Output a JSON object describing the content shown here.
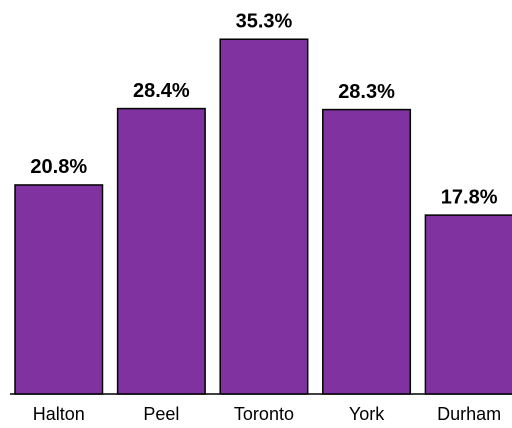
{
  "chart_data": {
    "type": "bar",
    "categories": [
      "Halton",
      "Peel",
      "Toronto",
      "York",
      "Durham"
    ],
    "values": [
      20.8,
      28.4,
      35.3,
      28.3,
      17.8
    ],
    "value_labels": [
      "20.8%",
      "28.4%",
      "35.3%",
      "28.3%",
      "17.8%"
    ],
    "color": "#8033a0"
  }
}
